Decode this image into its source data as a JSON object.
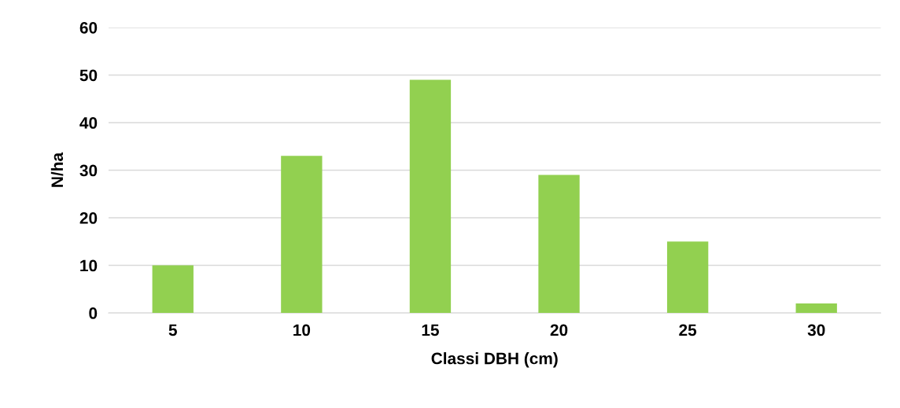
{
  "chart_data": {
    "type": "bar",
    "xlabel": "Classi DBH (cm)",
    "ylabel": "N/ha",
    "categories": [
      "5",
      "10",
      "15",
      "20",
      "25",
      "30"
    ],
    "values": [
      10,
      33,
      49,
      29,
      15,
      2
    ],
    "color": "#92d050",
    "ylim": [
      0,
      60
    ],
    "yticks": [
      0,
      10,
      20,
      30,
      40,
      50,
      60
    ],
    "grid": "y"
  }
}
